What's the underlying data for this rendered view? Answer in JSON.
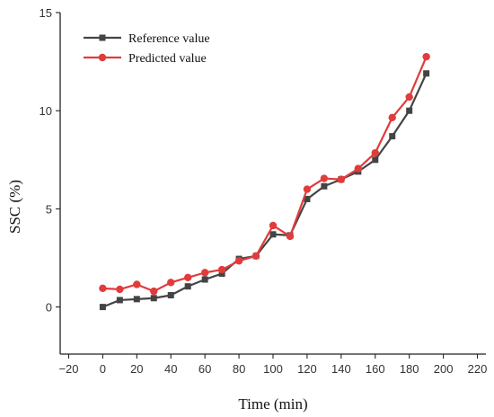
{
  "chart_data": {
    "type": "line",
    "xlabel": "Time (min)",
    "ylabel": "SSC (%)",
    "xlim": [
      -25,
      225
    ],
    "ylim": [
      -2.4,
      15
    ],
    "xticks": [
      -20,
      0,
      20,
      40,
      60,
      80,
      100,
      120,
      140,
      160,
      180,
      200,
      220
    ],
    "yticks": [
      0,
      5,
      10,
      15
    ],
    "x": [
      0,
      10,
      20,
      30,
      40,
      50,
      60,
      70,
      80,
      90,
      100,
      110,
      120,
      130,
      140,
      150,
      160,
      170,
      180,
      190
    ],
    "series": [
      {
        "name": "Reference value",
        "color": "#444444",
        "marker": "square",
        "values": [
          0.0,
          0.35,
          0.4,
          0.45,
          0.6,
          1.05,
          1.4,
          1.7,
          2.45,
          2.6,
          3.7,
          3.65,
          5.5,
          6.15,
          6.5,
          6.9,
          7.5,
          8.7,
          10.0,
          11.9
        ]
      },
      {
        "name": "Predicted value",
        "color": "#e03c3c",
        "marker": "circle",
        "values": [
          0.95,
          0.9,
          1.15,
          0.8,
          1.25,
          1.5,
          1.75,
          1.9,
          2.35,
          2.6,
          4.15,
          3.6,
          6.0,
          6.55,
          6.5,
          7.05,
          7.85,
          9.65,
          10.7,
          12.75
        ]
      }
    ],
    "grid": false,
    "legend": "top-left"
  }
}
